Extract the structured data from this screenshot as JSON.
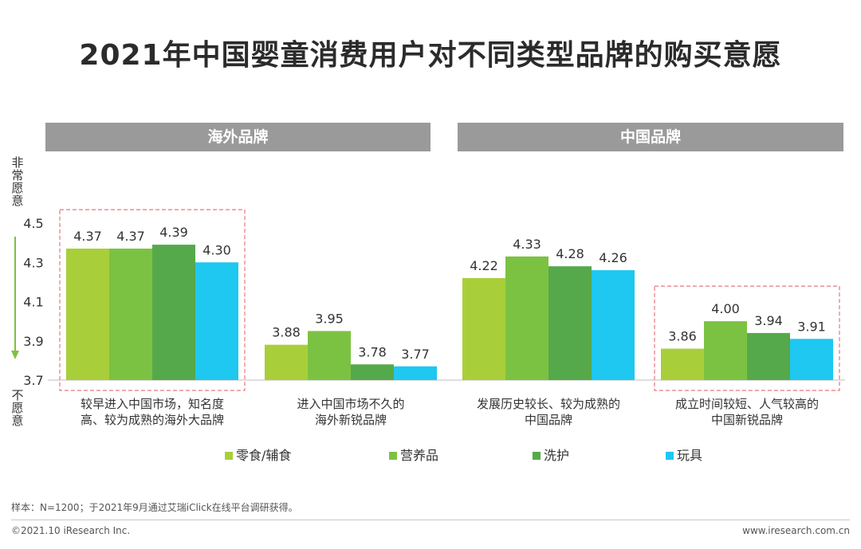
{
  "title": "2021年中国婴童消费用户对不同类型品牌的购买意愿",
  "groups": [
    "海外品牌",
    "中国品牌"
  ],
  "axis_top_label": "非常愿意",
  "axis_bottom_label": "不愿意",
  "chart_data": {
    "type": "bar",
    "title": "2021年中国婴童消费用户对不同类型品牌的购买意愿",
    "categories": [
      [
        "较早进入中国市场，知名度",
        "高、较为成熟的海外大品牌"
      ],
      [
        "进入中国市场不久的",
        "海外新锐品牌"
      ],
      [
        "发展历史较长、较为成熟的",
        "中国品牌"
      ],
      [
        "成立时间较短、人气较高的",
        "中国新锐品牌"
      ]
    ],
    "series": [
      {
        "name": "零食/辅食",
        "color": "#a8cf3a",
        "values": [
          4.37,
          3.88,
          4.22,
          3.86
        ]
      },
      {
        "name": "营养品",
        "color": "#7cc242",
        "values": [
          4.37,
          3.95,
          4.33,
          4.0
        ]
      },
      {
        "name": "洗护",
        "color": "#56a94a",
        "values": [
          4.39,
          3.78,
          4.28,
          3.94
        ]
      },
      {
        "name": "玩具",
        "color": "#1ec8f0",
        "values": [
          4.3,
          3.77,
          4.26,
          3.91
        ]
      }
    ],
    "yticks": [
      "4.5",
      "4.3",
      "4.1",
      "3.9",
      "3.7"
    ],
    "ylim": [
      3.7,
      4.5
    ],
    "value_labels": [
      [
        "4.37",
        "3.88",
        "4.22",
        "3.86"
      ],
      [
        "4.37",
        "3.95",
        "4.33",
        "4.00"
      ],
      [
        "4.39",
        "3.78",
        "4.28",
        "3.94"
      ],
      [
        "4.30",
        "3.77",
        "4.26",
        "3.91"
      ]
    ],
    "highlighted_categories": [
      0,
      3
    ],
    "legend_position": "bottom"
  },
  "note": "样本：N=1200；于2021年9月通过艾瑞iClick在线平台调研获得。",
  "copyright": "©2021.10 iResearch Inc.",
  "website": "www.iresearch.com.cn"
}
